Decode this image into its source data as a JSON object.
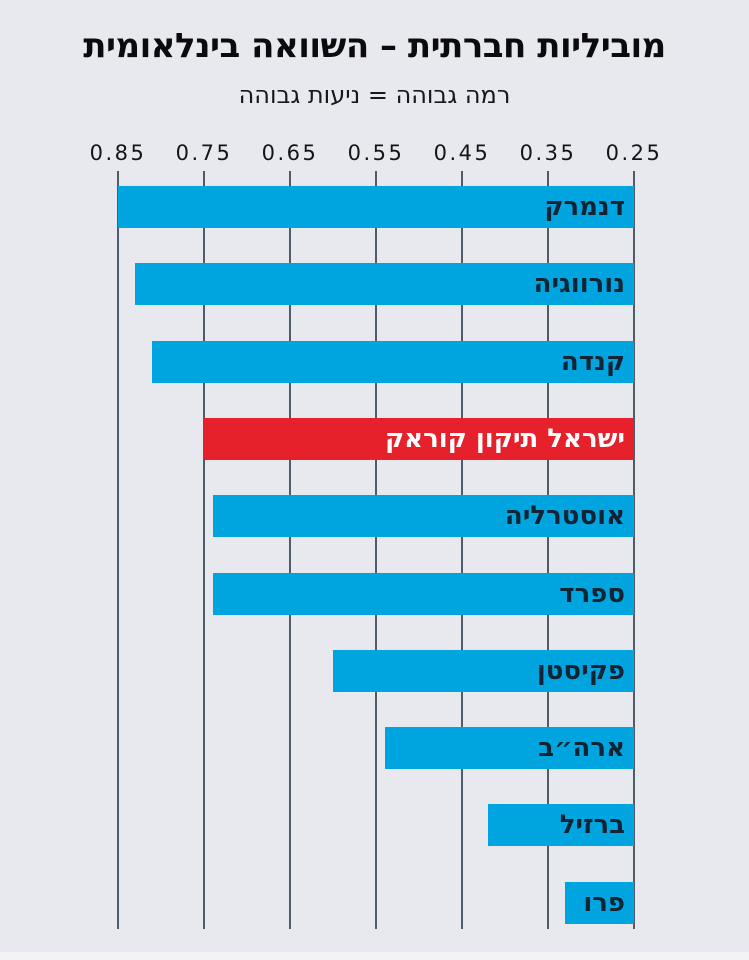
{
  "header": {
    "title": "מוביליות חברתית – השוואה בינלאומית",
    "subtitle": "רמה גבוהה = ניעות גבוהה"
  },
  "chart_data": {
    "type": "bar",
    "orientation": "horizontal",
    "value_axis_direction": "decreasing-left-to-right",
    "title": "מוביליות חברתית – השוואה בינלאומית",
    "subtitle": "רמה גבוהה = ניעות גבוהה",
    "xlabel": "",
    "ylabel": "",
    "xlim": [
      0.85,
      0.25
    ],
    "grid": true,
    "axis_tick_labels": [
      "0.85",
      "0.75",
      "0.65",
      "0.55",
      "0.45",
      "0.35",
      "0.25"
    ],
    "axis_tick_values": [
      0.85,
      0.75,
      0.65,
      0.55,
      0.45,
      0.35,
      0.25
    ],
    "categories": [
      "דנמרק",
      "נורווגיה",
      "קנדה",
      "ישראל תיקון קוראק",
      "אוסטרליה",
      "ספרד",
      "פקיסטן",
      "ארה״ב",
      "ברזיל",
      "פרו"
    ],
    "values": [
      0.85,
      0.83,
      0.81,
      0.75,
      0.74,
      0.74,
      0.6,
      0.54,
      0.42,
      0.33
    ],
    "highlight_index": 3,
    "bar_anchor_value": 0.25,
    "colors": {
      "background": "#e8e9ee",
      "bar_blue": "#00a5e0",
      "bar_highlight_red": "#e6212b",
      "bar_label_navy": "#122334",
      "bar_label_on_highlight": "#ffffff",
      "gridline": "#515c6b",
      "title_text": "#0b0b0d"
    }
  }
}
